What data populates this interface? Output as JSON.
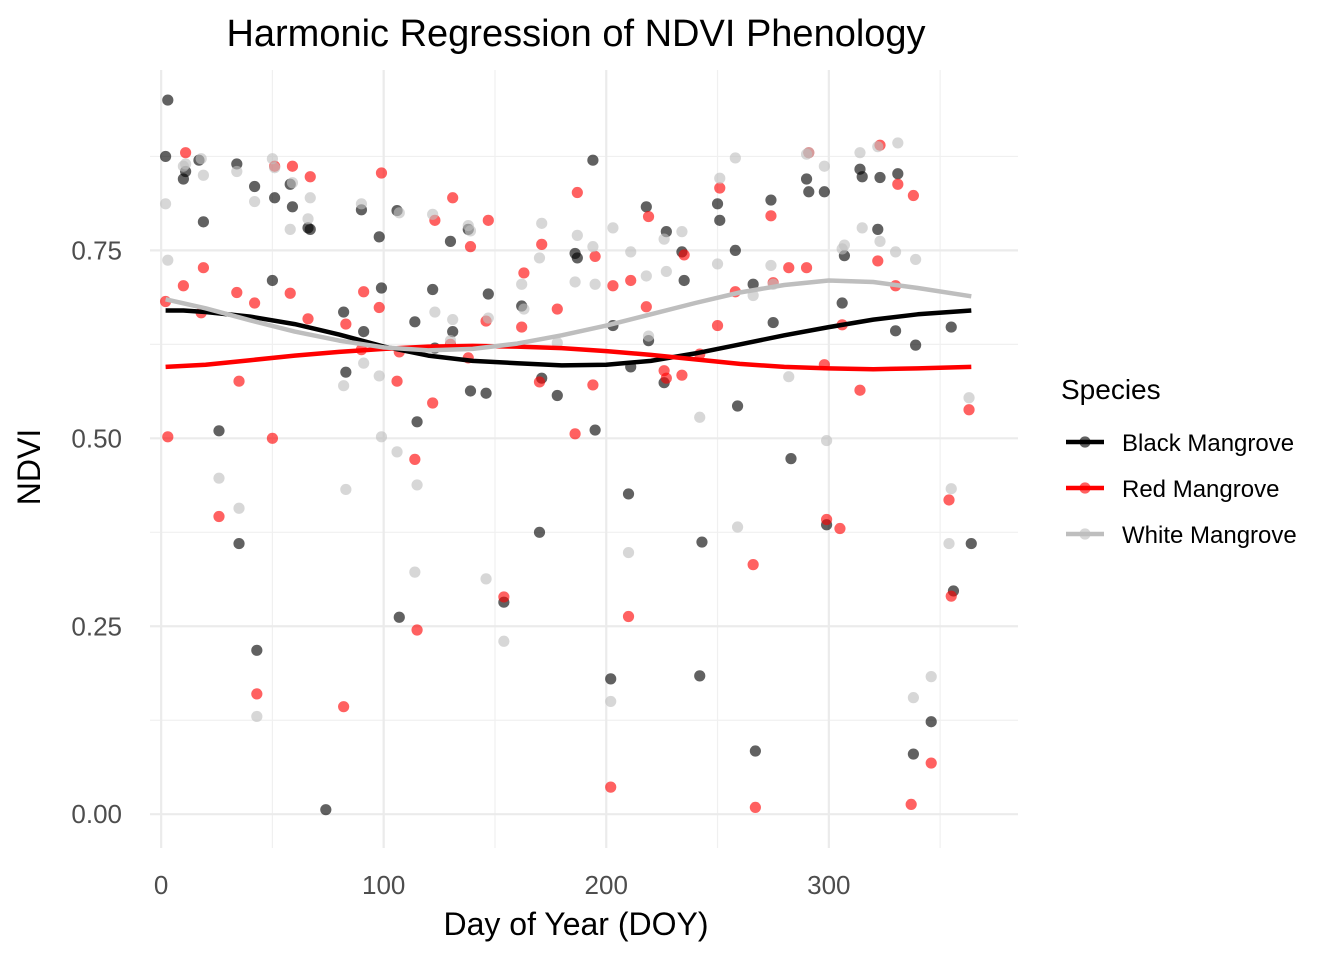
{
  "chart_data": {
    "type": "scatter",
    "title": "Harmonic Regression of NDVI Phenology",
    "xlabel": "Day of Year (DOY)",
    "ylabel": "NDVI",
    "xlim": [
      -5,
      385
    ],
    "ylim": [
      -0.045,
      0.99
    ],
    "x_ticks": [
      0,
      100,
      200,
      300
    ],
    "x_minor_ticks": [
      50,
      150,
      250,
      350
    ],
    "y_ticks": [
      0.0,
      0.25,
      0.5,
      0.75
    ],
    "y_tick_labels": [
      "0.00",
      "0.25",
      "0.50",
      "0.75"
    ],
    "y_minor_ticks": [
      0.125,
      0.375,
      0.625,
      0.875
    ],
    "grid": true,
    "legend": {
      "title": "Species",
      "position": "right"
    },
    "series": [
      {
        "name": "Black Mangrove",
        "color": "#000000",
        "points": [
          [
            2,
            0.875
          ],
          [
            3,
            0.95
          ],
          [
            10,
            0.845
          ],
          [
            11,
            0.855
          ],
          [
            17,
            0.87
          ],
          [
            19,
            0.788
          ],
          [
            26,
            0.51
          ],
          [
            34,
            0.865
          ],
          [
            35,
            0.36
          ],
          [
            42,
            0.835
          ],
          [
            43,
            0.218
          ],
          [
            50,
            0.71
          ],
          [
            51,
            0.82
          ],
          [
            58,
            0.838
          ],
          [
            59,
            0.808
          ],
          [
            66,
            0.78
          ],
          [
            67,
            0.778
          ],
          [
            74,
            0.006
          ],
          [
            82,
            0.668
          ],
          [
            83,
            0.588
          ],
          [
            90,
            0.804
          ],
          [
            91,
            0.642
          ],
          [
            98,
            0.768
          ],
          [
            99,
            0.7
          ],
          [
            106,
            0.803
          ],
          [
            107,
            0.262
          ],
          [
            114,
            0.655
          ],
          [
            115,
            0.522
          ],
          [
            122,
            0.698
          ],
          [
            123,
            0.62
          ],
          [
            130,
            0.762
          ],
          [
            131,
            0.642
          ],
          [
            138,
            0.778
          ],
          [
            139,
            0.563
          ],
          [
            146,
            0.56
          ],
          [
            147,
            0.692
          ],
          [
            154,
            0.282
          ],
          [
            162,
            0.676
          ],
          [
            170,
            0.375
          ],
          [
            171,
            0.58
          ],
          [
            178,
            0.557
          ],
          [
            186,
            0.746
          ],
          [
            187,
            0.74
          ],
          [
            194,
            0.87
          ],
          [
            195,
            0.511
          ],
          [
            202,
            0.18
          ],
          [
            203,
            0.65
          ],
          [
            210,
            0.426
          ],
          [
            211,
            0.595
          ],
          [
            218,
            0.808
          ],
          [
            219,
            0.63
          ],
          [
            226,
            0.574
          ],
          [
            227,
            0.775
          ],
          [
            234,
            0.748
          ],
          [
            235,
            0.71
          ],
          [
            242,
            0.184
          ],
          [
            243,
            0.362
          ],
          [
            250,
            0.812
          ],
          [
            251,
            0.79
          ],
          [
            258,
            0.75
          ],
          [
            259,
            0.543
          ],
          [
            266,
            0.705
          ],
          [
            267,
            0.084
          ],
          [
            274,
            0.817
          ],
          [
            275,
            0.654
          ],
          [
            283,
            0.473
          ],
          [
            290,
            0.845
          ],
          [
            291,
            0.828
          ],
          [
            298,
            0.828
          ],
          [
            299,
            0.385
          ],
          [
            306,
            0.68
          ],
          [
            307,
            0.743
          ],
          [
            314,
            0.858
          ],
          [
            315,
            0.848
          ],
          [
            322,
            0.778
          ],
          [
            323,
            0.847
          ],
          [
            330,
            0.643
          ],
          [
            331,
            0.852
          ],
          [
            338,
            0.08
          ],
          [
            339,
            0.624
          ],
          [
            346,
            0.123
          ],
          [
            355,
            0.648
          ],
          [
            356,
            0.297
          ],
          [
            364,
            0.36
          ]
        ],
        "fit_curve": [
          [
            2,
            0.67
          ],
          [
            10,
            0.67
          ],
          [
            20,
            0.668
          ],
          [
            40,
            0.662
          ],
          [
            60,
            0.652
          ],
          [
            80,
            0.638
          ],
          [
            100,
            0.622
          ],
          [
            120,
            0.61
          ],
          [
            140,
            0.603
          ],
          [
            160,
            0.6
          ],
          [
            180,
            0.597
          ],
          [
            200,
            0.598
          ],
          [
            220,
            0.603
          ],
          [
            240,
            0.613
          ],
          [
            260,
            0.625
          ],
          [
            280,
            0.637
          ],
          [
            300,
            0.648
          ],
          [
            320,
            0.658
          ],
          [
            340,
            0.665
          ],
          [
            364,
            0.67
          ]
        ]
      },
      {
        "name": "Red Mangrove",
        "color": "#FF0000",
        "points": [
          [
            2,
            0.682
          ],
          [
            3,
            0.502
          ],
          [
            10,
            0.703
          ],
          [
            11,
            0.88
          ],
          [
            18,
            0.667
          ],
          [
            19,
            0.727
          ],
          [
            26,
            0.396
          ],
          [
            34,
            0.694
          ],
          [
            35,
            0.576
          ],
          [
            42,
            0.68
          ],
          [
            43,
            0.16
          ],
          [
            50,
            0.5
          ],
          [
            51,
            0.862
          ],
          [
            58,
            0.693
          ],
          [
            59,
            0.862
          ],
          [
            66,
            0.659
          ],
          [
            67,
            0.848
          ],
          [
            82,
            0.143
          ],
          [
            83,
            0.652
          ],
          [
            90,
            0.618
          ],
          [
            91,
            0.695
          ],
          [
            98,
            0.674
          ],
          [
            99,
            0.853
          ],
          [
            106,
            0.576
          ],
          [
            107,
            0.615
          ],
          [
            114,
            0.472
          ],
          [
            115,
            0.245
          ],
          [
            122,
            0.547
          ],
          [
            123,
            0.79
          ],
          [
            130,
            0.625
          ],
          [
            131,
            0.82
          ],
          [
            138,
            0.607
          ],
          [
            139,
            0.755
          ],
          [
            146,
            0.656
          ],
          [
            147,
            0.79
          ],
          [
            154,
            0.289
          ],
          [
            162,
            0.648
          ],
          [
            163,
            0.72
          ],
          [
            170,
            0.575
          ],
          [
            171,
            0.758
          ],
          [
            178,
            0.672
          ],
          [
            186,
            0.506
          ],
          [
            187,
            0.827
          ],
          [
            194,
            0.571
          ],
          [
            195,
            0.742
          ],
          [
            202,
            0.036
          ],
          [
            203,
            0.703
          ],
          [
            210,
            0.263
          ],
          [
            211,
            0.71
          ],
          [
            218,
            0.675
          ],
          [
            219,
            0.795
          ],
          [
            226,
            0.59
          ],
          [
            227,
            0.58
          ],
          [
            234,
            0.584
          ],
          [
            235,
            0.744
          ],
          [
            242,
            0.612
          ],
          [
            250,
            0.65
          ],
          [
            251,
            0.833
          ],
          [
            258,
            0.695
          ],
          [
            266,
            0.332
          ],
          [
            267,
            0.009
          ],
          [
            274,
            0.796
          ],
          [
            275,
            0.707
          ],
          [
            282,
            0.727
          ],
          [
            290,
            0.727
          ],
          [
            291,
            0.88
          ],
          [
            298,
            0.598
          ],
          [
            299,
            0.392
          ],
          [
            305,
            0.38
          ],
          [
            306,
            0.651
          ],
          [
            314,
            0.564
          ],
          [
            322,
            0.736
          ],
          [
            323,
            0.89
          ],
          [
            330,
            0.703
          ],
          [
            331,
            0.838
          ],
          [
            337,
            0.013
          ],
          [
            338,
            0.823
          ],
          [
            346,
            0.068
          ],
          [
            354,
            0.418
          ],
          [
            355,
            0.29
          ],
          [
            363,
            0.538
          ]
        ],
        "fit_curve": [
          [
            2,
            0.595
          ],
          [
            20,
            0.598
          ],
          [
            40,
            0.604
          ],
          [
            60,
            0.61
          ],
          [
            80,
            0.615
          ],
          [
            100,
            0.619
          ],
          [
            120,
            0.622
          ],
          [
            140,
            0.623
          ],
          [
            160,
            0.622
          ],
          [
            180,
            0.62
          ],
          [
            200,
            0.616
          ],
          [
            220,
            0.611
          ],
          [
            240,
            0.605
          ],
          [
            260,
            0.599
          ],
          [
            280,
            0.595
          ],
          [
            300,
            0.593
          ],
          [
            320,
            0.592
          ],
          [
            340,
            0.593
          ],
          [
            364,
            0.595
          ]
        ]
      },
      {
        "name": "White Mangrove",
        "color": "#BEBEBE",
        "points": [
          [
            2,
            0.812
          ],
          [
            3,
            0.737
          ],
          [
            10,
            0.862
          ],
          [
            11,
            0.865
          ],
          [
            18,
            0.872
          ],
          [
            19,
            0.85
          ],
          [
            26,
            0.447
          ],
          [
            34,
            0.855
          ],
          [
            35,
            0.407
          ],
          [
            42,
            0.815
          ],
          [
            43,
            0.13
          ],
          [
            50,
            0.872
          ],
          [
            51,
            0.86
          ],
          [
            58,
            0.778
          ],
          [
            59,
            0.84
          ],
          [
            66,
            0.792
          ],
          [
            67,
            0.82
          ],
          [
            82,
            0.57
          ],
          [
            83,
            0.432
          ],
          [
            90,
            0.812
          ],
          [
            91,
            0.6
          ],
          [
            98,
            0.583
          ],
          [
            99,
            0.502
          ],
          [
            106,
            0.482
          ],
          [
            107,
            0.8
          ],
          [
            114,
            0.322
          ],
          [
            115,
            0.438
          ],
          [
            122,
            0.798
          ],
          [
            123,
            0.668
          ],
          [
            130,
            0.63
          ],
          [
            131,
            0.658
          ],
          [
            138,
            0.783
          ],
          [
            139,
            0.776
          ],
          [
            146,
            0.313
          ],
          [
            147,
            0.66
          ],
          [
            154,
            0.23
          ],
          [
            162,
            0.705
          ],
          [
            163,
            0.672
          ],
          [
            170,
            0.74
          ],
          [
            171,
            0.786
          ],
          [
            178,
            0.627
          ],
          [
            186,
            0.708
          ],
          [
            187,
            0.77
          ],
          [
            194,
            0.755
          ],
          [
            195,
            0.705
          ],
          [
            202,
            0.15
          ],
          [
            203,
            0.78
          ],
          [
            210,
            0.348
          ],
          [
            211,
            0.748
          ],
          [
            218,
            0.716
          ],
          [
            219,
            0.636
          ],
          [
            226,
            0.765
          ],
          [
            227,
            0.722
          ],
          [
            234,
            0.775
          ],
          [
            242,
            0.528
          ],
          [
            250,
            0.732
          ],
          [
            251,
            0.846
          ],
          [
            258,
            0.873
          ],
          [
            259,
            0.382
          ],
          [
            266,
            0.69
          ],
          [
            274,
            0.73
          ],
          [
            275,
            0.705
          ],
          [
            282,
            0.582
          ],
          [
            290,
            0.878
          ],
          [
            291,
            0.88
          ],
          [
            298,
            0.862
          ],
          [
            299,
            0.497
          ],
          [
            306,
            0.752
          ],
          [
            307,
            0.757
          ],
          [
            314,
            0.88
          ],
          [
            315,
            0.78
          ],
          [
            322,
            0.888
          ],
          [
            323,
            0.762
          ],
          [
            330,
            0.748
          ],
          [
            331,
            0.893
          ],
          [
            338,
            0.155
          ],
          [
            339,
            0.738
          ],
          [
            346,
            0.183
          ],
          [
            354,
            0.36
          ],
          [
            355,
            0.433
          ],
          [
            363,
            0.554
          ]
        ],
        "fit_curve": [
          [
            2,
            0.685
          ],
          [
            20,
            0.673
          ],
          [
            40,
            0.657
          ],
          [
            60,
            0.642
          ],
          [
            80,
            0.63
          ],
          [
            100,
            0.621
          ],
          [
            120,
            0.617
          ],
          [
            140,
            0.619
          ],
          [
            160,
            0.626
          ],
          [
            180,
            0.637
          ],
          [
            200,
            0.65
          ],
          [
            220,
            0.665
          ],
          [
            240,
            0.68
          ],
          [
            260,
            0.694
          ],
          [
            280,
            0.704
          ],
          [
            300,
            0.71
          ],
          [
            320,
            0.708
          ],
          [
            340,
            0.7
          ],
          [
            364,
            0.689
          ]
        ]
      }
    ]
  }
}
